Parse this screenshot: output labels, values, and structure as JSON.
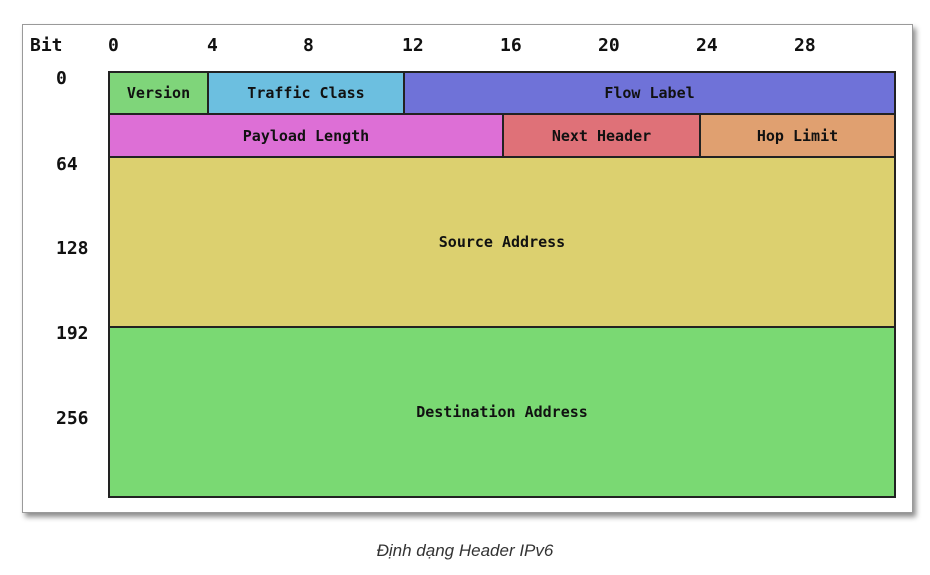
{
  "diagram": {
    "bit_axis": {
      "title": "Bit",
      "ticks": [
        "0",
        "4",
        "8",
        "12",
        "16",
        "20",
        "24",
        "28"
      ]
    },
    "row_labels": [
      "0",
      "64",
      "128",
      "192",
      "256"
    ],
    "fields": {
      "version": {
        "label": "Version",
        "color": "#7fd57a"
      },
      "traffic_class": {
        "label": "Traffic Class",
        "color": "#6cbfe0"
      },
      "flow_label": {
        "label": "Flow Label",
        "color": "#6f72d8"
      },
      "payload_length": {
        "label": "Payload Length",
        "color": "#dd6fd6"
      },
      "next_header": {
        "label": "Next Header",
        "color": "#df7178"
      },
      "hop_limit": {
        "label": "Hop Limit",
        "color": "#e0a070"
      },
      "source_address": {
        "label": "Source Address",
        "color": "#dcd06f"
      },
      "destination_address": {
        "label": "Destination Address",
        "color": "#7ad973"
      }
    }
  },
  "caption": "Định dạng Header IPv6"
}
